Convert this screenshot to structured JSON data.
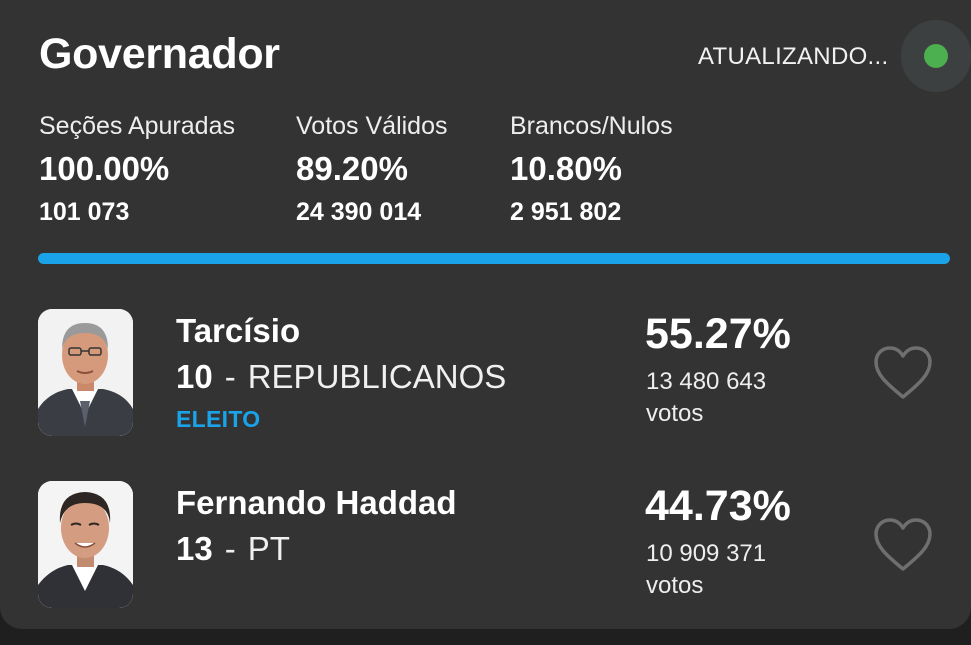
{
  "header": {
    "title": "Governador",
    "status_text": "ATUALIZANDO...",
    "status_color": "#4caf50"
  },
  "stats": [
    {
      "label": "Seções Apuradas",
      "percent": "100.00%",
      "count": "101 073"
    },
    {
      "label": "Votos Válidos",
      "percent": "89.20%",
      "count": "24 390 014"
    },
    {
      "label": "Brancos/Nulos",
      "percent": "10.80%",
      "count": "2 951 802"
    }
  ],
  "progress": {
    "fraction": 1.0,
    "color": "#1aa3e8"
  },
  "candidates": [
    {
      "name": "Tarcísio",
      "number": "10",
      "separator": "-",
      "party": "REPUBLICANOS",
      "status": "ELEITO",
      "percent": "55.27%",
      "votes": "13 480 643",
      "votes_label": "votos",
      "favorite_icon": "heart-outline-icon"
    },
    {
      "name": "Fernando Haddad",
      "number": "13",
      "separator": "-",
      "party": "PT",
      "status": "",
      "percent": "44.73%",
      "votes": "10 909 371",
      "votes_label": "votos",
      "favorite_icon": "heart-outline-icon"
    }
  ],
  "colors": {
    "background": "#1f1f1f",
    "card": "#333333",
    "accent": "#1aa3e8"
  }
}
